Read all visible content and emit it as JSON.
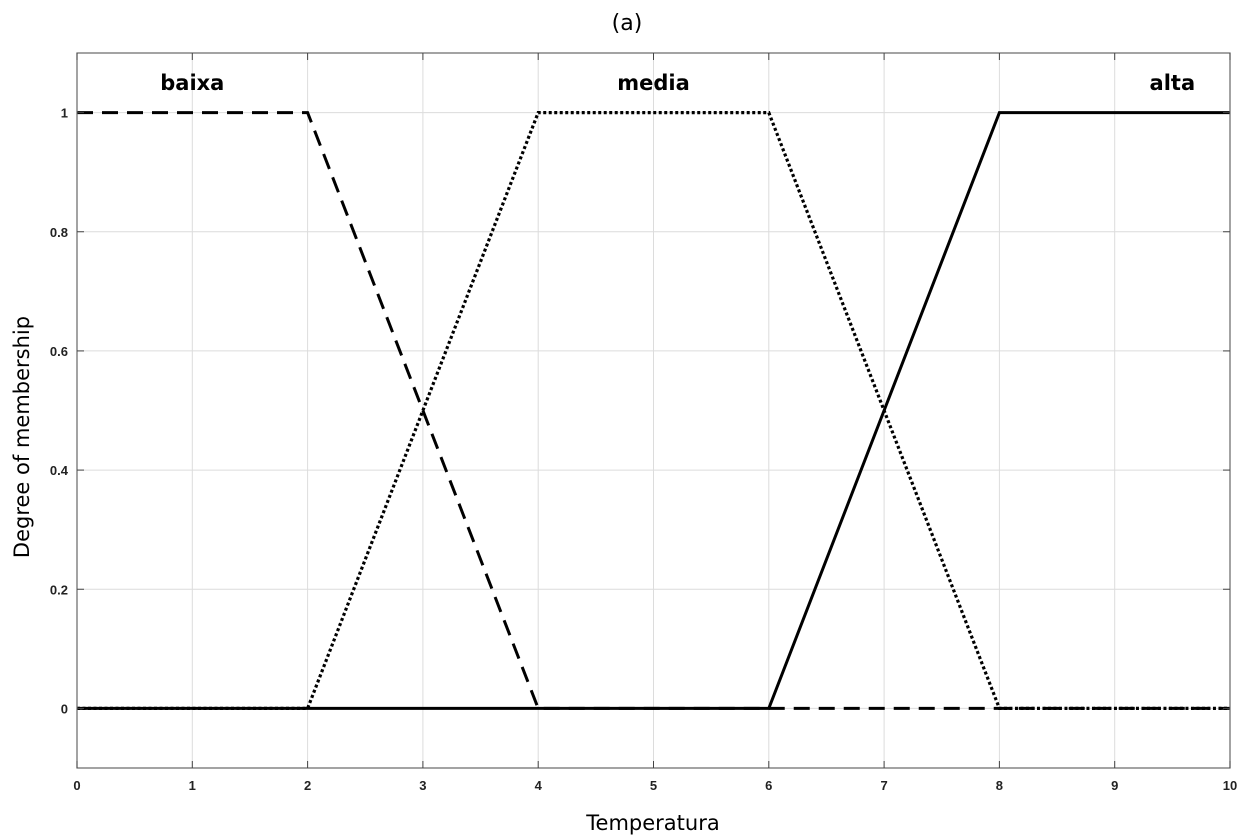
{
  "chart_data": {
    "type": "line",
    "title": "(a)",
    "xlabel": "Temperatura",
    "ylabel": "Degree of membership",
    "xlim": [
      0,
      10
    ],
    "ylim": [
      -0.1,
      1.1
    ],
    "xticks": [
      0,
      1,
      2,
      3,
      4,
      5,
      6,
      7,
      8,
      9,
      10
    ],
    "yticks": [
      0,
      0.2,
      0.4,
      0.6,
      0.8,
      1
    ],
    "ytick_labels": [
      "0",
      "0.2",
      "0.4",
      "0.6",
      "0.8",
      "1"
    ],
    "grid": true,
    "series": [
      {
        "name": "baixa",
        "style": "dashed",
        "color": "#000000",
        "x": [
          0,
          2,
          4,
          10
        ],
        "y": [
          1,
          1,
          0,
          0
        ]
      },
      {
        "name": "media",
        "style": "dotted",
        "color": "#000000",
        "x": [
          0,
          2,
          4,
          6,
          8,
          10
        ],
        "y": [
          0,
          0,
          1,
          1,
          0,
          0
        ]
      },
      {
        "name": "alta",
        "style": "solid",
        "color": "#000000",
        "x": [
          0,
          6,
          8,
          10
        ],
        "y": [
          0,
          0,
          1,
          1
        ]
      }
    ],
    "series_labels": [
      {
        "text": "baixa",
        "x": 1,
        "y": 1.05
      },
      {
        "text": "media",
        "x": 5,
        "y": 1.05
      },
      {
        "text": "alta",
        "x": 9.5,
        "y": 1.05
      }
    ]
  }
}
